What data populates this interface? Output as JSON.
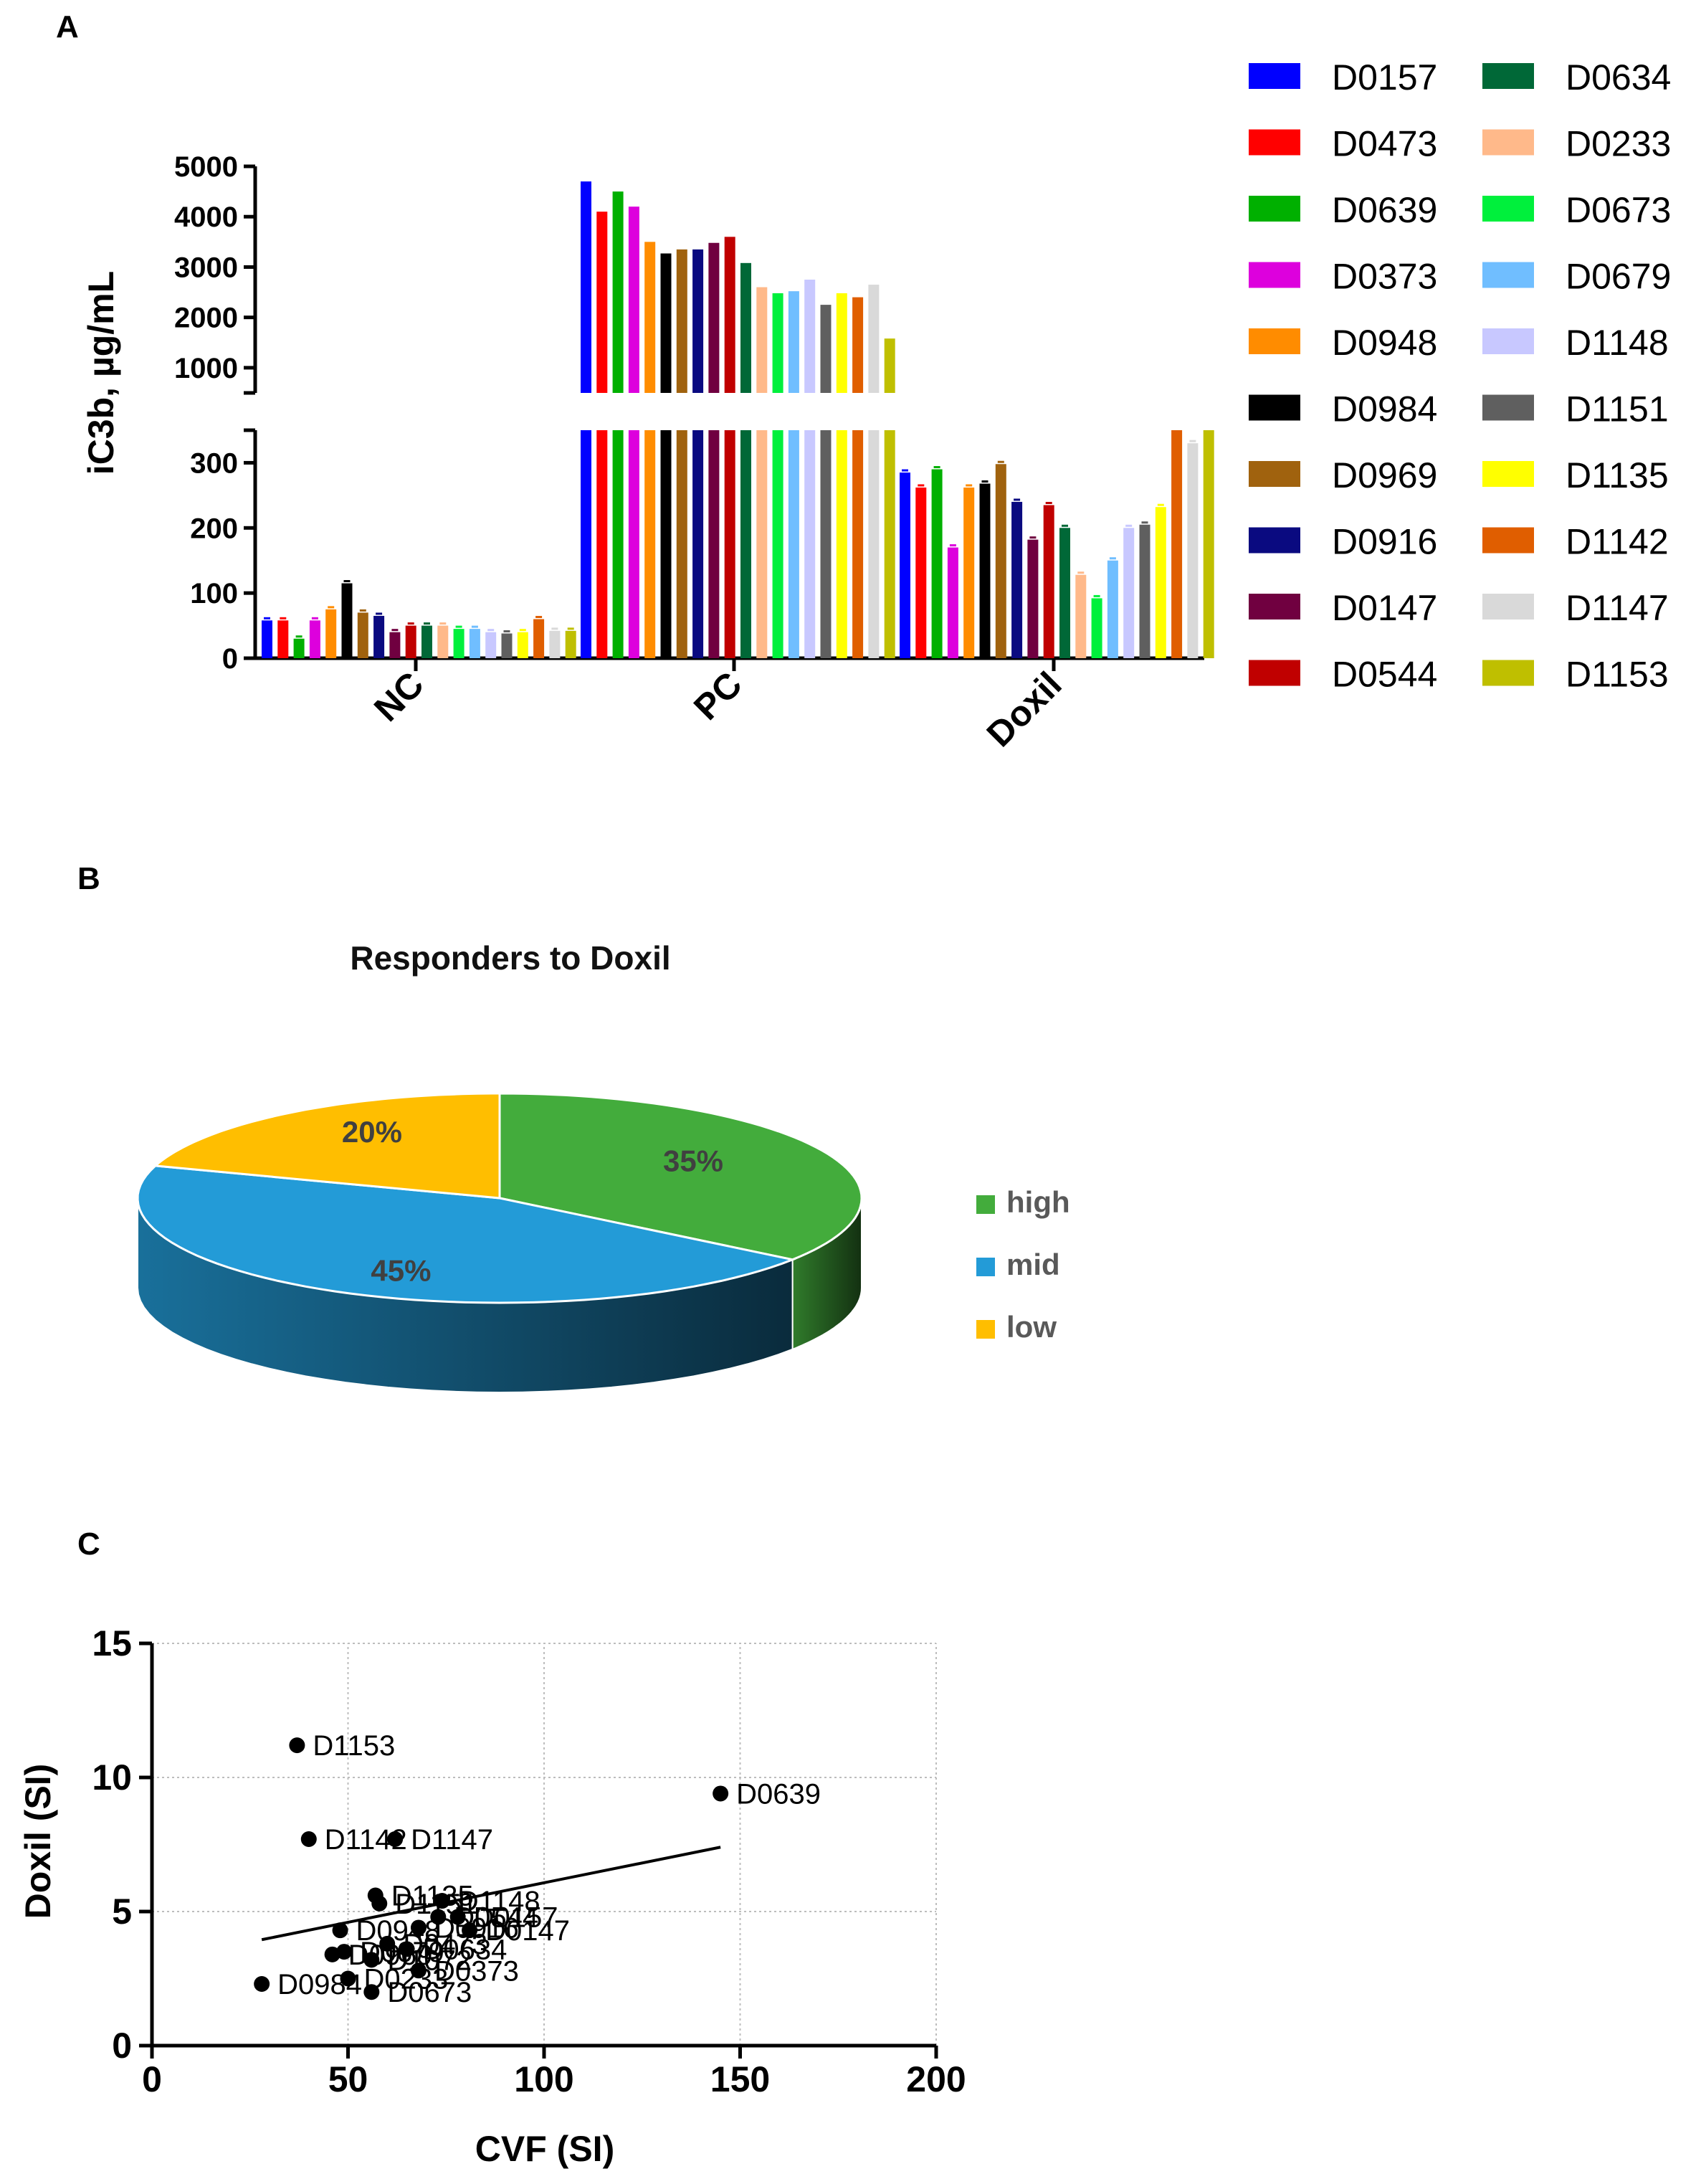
{
  "panels": {
    "A": "A",
    "B": "B",
    "C": "C"
  },
  "chart_data": [
    {
      "type": "bar",
      "panel": "A",
      "ylabel": "iC3b, µg/mL",
      "categories": [
        "NC",
        "PC",
        "Doxil"
      ],
      "axis_break": {
        "lower_ylim": [
          0,
          350
        ],
        "upper_ylim": [
          500,
          5000
        ]
      },
      "lower_ticks": [
        0,
        100,
        200,
        300
      ],
      "upper_ticks": [
        1000,
        2000,
        3000,
        4000,
        5000
      ],
      "series": [
        {
          "name": "D0157",
          "color": "#0000FF",
          "values": [
            58,
            4700,
            285
          ]
        },
        {
          "name": "D0473",
          "color": "#FF0000",
          "values": [
            58,
            4100,
            262
          ]
        },
        {
          "name": "D0639",
          "color": "#00B000",
          "values": [
            30,
            4500,
            290
          ]
        },
        {
          "name": "D0373",
          "color": "#DD00DD",
          "values": [
            58,
            4200,
            170
          ]
        },
        {
          "name": "D0948",
          "color": "#FF8C00",
          "values": [
            75,
            3500,
            262
          ]
        },
        {
          "name": "D0984",
          "color": "#000000",
          "values": [
            115,
            3270,
            268
          ]
        },
        {
          "name": "D0969",
          "color": "#A0620E",
          "values": [
            70,
            3350,
            298
          ]
        },
        {
          "name": "D0916",
          "color": "#0A0A80",
          "values": [
            65,
            3350,
            240
          ]
        },
        {
          "name": "D0147",
          "color": "#700040",
          "values": [
            40,
            3480,
            182
          ]
        },
        {
          "name": "D0544",
          "color": "#C00000",
          "values": [
            50,
            3600,
            235
          ]
        },
        {
          "name": "D0634",
          "color": "#006837",
          "values": [
            50,
            3080,
            200
          ]
        },
        {
          "name": "D0233",
          "color": "#FFB98A",
          "values": [
            50,
            2600,
            128
          ]
        },
        {
          "name": "D0673",
          "color": "#00F03C",
          "values": [
            45,
            2480,
            92
          ]
        },
        {
          "name": "D0679",
          "color": "#70BEFF",
          "values": [
            45,
            2520,
            150
          ]
        },
        {
          "name": "D1148",
          "color": "#C8C8FF",
          "values": [
            40,
            2750,
            200
          ]
        },
        {
          "name": "D1151",
          "color": "#5F5F5F",
          "values": [
            38,
            2250,
            205
          ]
        },
        {
          "name": "D1135",
          "color": "#FFFF00",
          "values": [
            40,
            2480,
            232
          ]
        },
        {
          "name": "D1142",
          "color": "#E05E00",
          "values": [
            60,
            2400,
            420
          ]
        },
        {
          "name": "D1147",
          "color": "#D9D9D9",
          "values": [
            42,
            2650,
            330
          ]
        },
        {
          "name": "D1153",
          "color": "#BFBF00",
          "values": [
            42,
            1580,
            440
          ]
        }
      ]
    },
    {
      "type": "pie",
      "panel": "B",
      "title": "Responders to Doxil",
      "slices": [
        {
          "label": "high",
          "value": 35,
          "pct_label": "35%",
          "color": "#43AC3C"
        },
        {
          "label": "mid",
          "value": 45,
          "pct_label": "45%",
          "color": "#239BD7"
        },
        {
          "label": "low",
          "value": 20,
          "pct_label": "20%",
          "color": "#FFBE00"
        }
      ]
    },
    {
      "type": "scatter",
      "panel": "C",
      "xlabel": "CVF  (SI)",
      "ylabel": "Doxil (SI)",
      "xlim": [
        0,
        200
      ],
      "ylim": [
        0,
        15
      ],
      "xticks": [
        0,
        50,
        100,
        150,
        200
      ],
      "yticks": [
        0,
        5,
        10,
        15
      ],
      "grid": true,
      "points": [
        {
          "x": 37,
          "y": 11.2,
          "label": "D1153"
        },
        {
          "x": 145,
          "y": 9.4,
          "label": "D0639"
        },
        {
          "x": 40,
          "y": 7.7,
          "label": "D1142"
        },
        {
          "x": 62,
          "y": 7.7,
          "label": "D1147"
        },
        {
          "x": 57,
          "y": 5.6,
          "label": "D1135"
        },
        {
          "x": 58,
          "y": 5.3,
          "label": "D1151"
        },
        {
          "x": 74,
          "y": 5.4,
          "label": "D1148"
        },
        {
          "x": 73,
          "y": 4.8,
          "label": "D0544"
        },
        {
          "x": 78,
          "y": 4.8,
          "label": "D0157"
        },
        {
          "x": 81,
          "y": 4.3,
          "label": "D0147"
        },
        {
          "x": 48,
          "y": 4.3,
          "label": "D0948"
        },
        {
          "x": 68,
          "y": 4.4,
          "label": "D0916"
        },
        {
          "x": 60,
          "y": 3.8,
          "label": "D0473"
        },
        {
          "x": 65,
          "y": 3.6,
          "label": "D0634"
        },
        {
          "x": 46,
          "y": 3.4,
          "label": "D0969"
        },
        {
          "x": 49,
          "y": 3.5,
          "label": "D0679"
        },
        {
          "x": 56,
          "y": 3.2,
          "label": "D1072"
        },
        {
          "x": 68,
          "y": 2.8,
          "label": "D0373"
        },
        {
          "x": 50,
          "y": 2.5,
          "label": "D0233"
        },
        {
          "x": 28,
          "y": 2.3,
          "label": "D0984"
        },
        {
          "x": 56,
          "y": 2.0,
          "label": "D0673"
        }
      ],
      "fit_line": [
        {
          "x": 28,
          "y": 3.95
        },
        {
          "x": 145,
          "y": 7.4
        }
      ]
    }
  ]
}
